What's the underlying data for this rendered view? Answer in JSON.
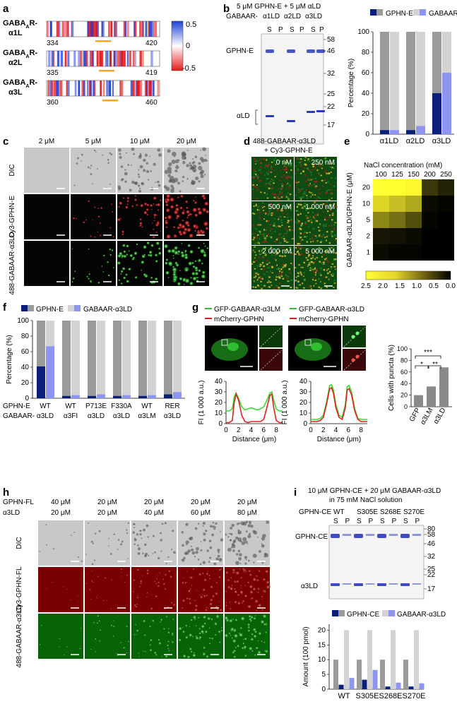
{
  "panels": {
    "a": {
      "label": "a",
      "rows": [
        {
          "name_main": "GABA",
          "name_sub": "A",
          "name_end": "R-",
          "name_line2": "α1L",
          "start": "334",
          "end": "420"
        },
        {
          "name_main": "GABA",
          "name_sub": "A",
          "name_end": "R-",
          "name_line2": "α2L",
          "start": "335",
          "end": "419"
        },
        {
          "name_main": "GABA",
          "name_sub": "A",
          "name_end": "R-",
          "name_line2": "α3L",
          "start": "360",
          "end": "460"
        }
      ],
      "colorbar": {
        "max": "0.5",
        "mid": "0",
        "min": "-0.5",
        "colors": {
          "pos": "#1f3fd6",
          "neg": "#e31a1c"
        }
      }
    },
    "b": {
      "label": "b",
      "condition": "5 μM GPHN-E + 5 μM αLD",
      "lane_prefix": "GABAAR-",
      "lane_groups": [
        "α1LD",
        "α2LD",
        "α3LD"
      ],
      "lane_sp": [
        "S",
        "P",
        "S",
        "P",
        "S",
        "P"
      ],
      "band_labels": {
        "gphn": "GPHN-E",
        "ald": "αLD"
      },
      "markers": [
        "58",
        "46",
        "32",
        "25",
        "22",
        "17"
      ],
      "chart_data": {
        "type": "bar",
        "categories": [
          "α1LD",
          "α2LD",
          "α3LD"
        ],
        "series": [
          {
            "name": "GPHN-E",
            "values": [
              4,
              4,
              40
            ]
          },
          {
            "name": "GABAAR",
            "values": [
              4,
              8,
              60
            ]
          }
        ],
        "ylabel": "Percentage (%)",
        "yticks": [
          "0",
          "20",
          "40",
          "60",
          "80",
          "100"
        ],
        "ylim": [
          0,
          100
        ],
        "colors": {
          "gphn_dark": "#0a1f7a",
          "gphn_light": "#9b9b9b",
          "gaba_dark": "#8e95f0",
          "gaba_light": "#d3d3d3"
        }
      }
    },
    "c": {
      "label": "c",
      "concentrations": [
        "2 μM",
        "5 μM",
        "10 μM",
        "20 μM"
      ],
      "rows": [
        "DIC",
        "Cy3-GPHN-E",
        "488-GABAAR-α3LD"
      ]
    },
    "d": {
      "label": "d",
      "title_line1": "488-GABAAR-α3LD",
      "title_line2": "+ Cy3-GPHN-E",
      "tiles": [
        "0 nM",
        "250 nM",
        "500 nM",
        "1 000 nM",
        "2 000 nM",
        "5 000 nM"
      ]
    },
    "e": {
      "label": "e",
      "xlabel": "NaCl concentration (mM)",
      "xticks": [
        "100",
        "125",
        "150",
        "200",
        "250"
      ],
      "ylabel": "GABAAR-α3LD/GPHN-E (μM)",
      "yticks": [
        "20",
        "10",
        "5",
        "2",
        "1"
      ],
      "chart_data": {
        "type": "heatmap",
        "rows": [
          "20",
          "10",
          "5",
          "2",
          "1"
        ],
        "cols": [
          "100",
          "125",
          "150",
          "200",
          "250"
        ],
        "values": [
          [
            2.4,
            2.3,
            2.2,
            0.5,
            0.3
          ],
          [
            1.9,
            1.7,
            1.5,
            0.1,
            0.05
          ],
          [
            1.2,
            1.0,
            0.7,
            0.05,
            0.0
          ],
          [
            0.2,
            0.15,
            0.1,
            0.0,
            0.0
          ],
          [
            0.1,
            0.05,
            0.05,
            0.0,
            0.0
          ]
        ],
        "scale_ticks": [
          "2.5",
          "2.0",
          "1.5",
          "1.0",
          "0.5",
          "0.0"
        ]
      }
    },
    "f": {
      "label": "f",
      "legend": [
        "GPHN-E",
        "GABAAR-α3LD"
      ],
      "ylabel": "Percentage (%)",
      "yticks": [
        "0",
        "20",
        "40",
        "60",
        "80",
        "100"
      ],
      "row1_label": "GPHN-E",
      "row2_label": "GABAAR-",
      "chart_data": {
        "type": "bar",
        "categories_row1": [
          "WT",
          "WT",
          "P713E",
          "F330A",
          "WT",
          "RER"
        ],
        "categories_row2": [
          "α3LD",
          "α3FI",
          "α3LD",
          "α3LD",
          "α3LM",
          "α3LD"
        ],
        "series": [
          {
            "name": "GPHN-E",
            "values": [
              41,
              3,
              3,
              3,
              3,
              5
            ]
          },
          {
            "name": "GABAAR-α3LD",
            "values": [
              67,
              4,
              5,
              4,
              4,
              8
            ]
          }
        ],
        "ylim": [
          0,
          100
        ]
      }
    },
    "g": {
      "label": "g",
      "legend_left": [
        "GFP-GABAAR-α3LM",
        "mCherry-GPHN"
      ],
      "legend_right": [
        "GFP-GABAAR-α3LD",
        "mCherry-GPHN"
      ],
      "ylabel": "FI (1 000 a.u.)",
      "xlabel": "Distance (μm)",
      "yticks": [
        "0",
        "10",
        "20",
        "30",
        "40"
      ],
      "xticks": [
        "0",
        "2",
        "4",
        "6",
        "8"
      ],
      "bar_chart": {
        "type": "bar",
        "categories": [
          "GFP",
          "α3LM",
          "α3LD"
        ],
        "values": [
          20,
          35,
          68
        ],
        "ylabel": "Cells with puncta (%)",
        "yticks": [
          "0",
          "20",
          "40",
          "60",
          "80",
          "100"
        ],
        "ylim": [
          0,
          100
        ],
        "sig": [
          "***",
          "*",
          "**"
        ]
      },
      "line_left": {
        "x": [
          0,
          0.5,
          1,
          1.3,
          1.6,
          2,
          2.5,
          3,
          3.5,
          4,
          4.5,
          5,
          5.5,
          6,
          6.5,
          7,
          7.3,
          7.6,
          8,
          8.5,
          9
        ],
        "green": [
          12,
          12,
          14,
          25,
          29,
          24,
          16,
          13,
          14,
          15,
          14,
          13,
          14,
          16,
          22,
          29,
          30,
          22,
          14,
          12,
          12
        ],
        "red": [
          1,
          1,
          3,
          20,
          28,
          22,
          8,
          2,
          1,
          2,
          2,
          2,
          2,
          4,
          15,
          27,
          28,
          15,
          3,
          1,
          1
        ]
      },
      "line_right": {
        "x": [
          0,
          0.5,
          1,
          1.5,
          2,
          2.5,
          3,
          3.3,
          3.6,
          4,
          4.5,
          5,
          5.5,
          5.8,
          6.1,
          6.5,
          7,
          7.5,
          8,
          8.5,
          9
        ],
        "green": [
          4,
          4,
          4,
          5,
          8,
          20,
          36,
          37,
          32,
          18,
          8,
          6,
          18,
          35,
          36,
          30,
          14,
          5,
          4,
          4,
          4
        ],
        "red": [
          2,
          2,
          2,
          3,
          6,
          18,
          33,
          34,
          29,
          15,
          6,
          4,
          15,
          32,
          33,
          27,
          12,
          4,
          2,
          2,
          2
        ]
      }
    },
    "h": {
      "label": "h",
      "row_gphn_label": "GPHN-FL",
      "row_a3_label": "α3LD",
      "gphn_conc": [
        "40 μM",
        "20 μM",
        "20 μM",
        "20 μM",
        "20 μM"
      ],
      "a3_conc": [
        "20 μM",
        "20 μM",
        "40 μM",
        "60 μM",
        "80 μM"
      ],
      "rows": [
        "DIC",
        "Cy3-GPHN-FL",
        "488-GABAAR-α3LD"
      ]
    },
    "i": {
      "label": "i",
      "condition_line1": "10 μM GPHN-CE + 20 μM GABAAR-α3LD",
      "condition_line2": "in 75 mM NaCl solution",
      "lane_header": "GPHN-CE",
      "lane_groups": [
        "WT",
        "S305E",
        "S268E",
        "S270E"
      ],
      "lane_sp": [
        "S",
        "P",
        "S",
        "P",
        "S",
        "P",
        "S",
        "P"
      ],
      "band_labels": {
        "gphn": "GPHN-CE",
        "a3": "α3LD"
      },
      "markers": [
        "80",
        "58",
        "46",
        "32",
        "25",
        "22",
        "17"
      ],
      "legend": [
        "GPHN-CE",
        "GABAAR-α3LD"
      ],
      "chart_data": {
        "type": "bar",
        "categories": [
          "WT",
          "S305E",
          "S268E",
          "S270E"
        ],
        "series": [
          {
            "name": "GPHN-CE S",
            "values": [
              10,
              10,
              10,
              10
            ]
          },
          {
            "name": "GPHN-CE P",
            "values": [
              1.5,
              3.2,
              0.9,
              0.9
            ]
          },
          {
            "name": "GABAAR-α3LD S",
            "values": [
              20,
              20,
              20,
              20
            ]
          },
          {
            "name": "GABAAR-α3LD P",
            "values": [
              3.8,
              6.5,
              2.2,
              2.0
            ]
          }
        ],
        "ylabel": "Amount (100 pmol)",
        "yticks": [
          "0",
          "5",
          "10",
          "15",
          "20"
        ],
        "ylim": [
          0,
          22
        ]
      }
    }
  }
}
